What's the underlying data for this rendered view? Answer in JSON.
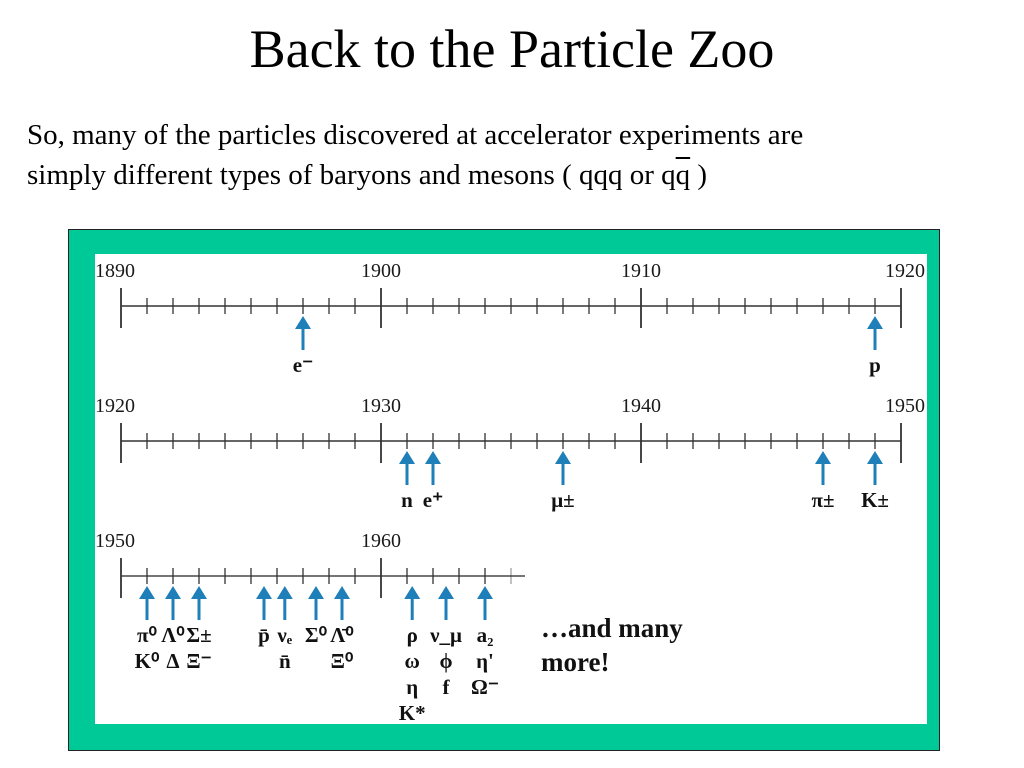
{
  "slide": {
    "title": "Back to the Particle Zoo",
    "line1": "So, many of the particles discovered at accelerator experiments are",
    "line2_pre": "simply different types of baryons and mesons ( qqq or q",
    "line2_bar": "q",
    "line2_post": ")"
  },
  "colors": {
    "frame": "#00c998",
    "arrow": "#1f7fb8",
    "axis": "#333333"
  },
  "timelines": [
    {
      "start": 1890,
      "end": 1920,
      "labels": [
        "1890",
        "1900",
        "1910",
        "1920"
      ]
    },
    {
      "start": 1920,
      "end": 1950,
      "labels": [
        "1920",
        "1930",
        "1940",
        "1950"
      ]
    },
    {
      "start": 1950,
      "end": 1980,
      "labels": [
        "1950",
        "1960"
      ]
    }
  ],
  "discoveries": [
    {
      "row": 0,
      "year": 1897,
      "lines": [
        "e⁻"
      ]
    },
    {
      "row": 0,
      "year": 1919,
      "lines": [
        "p"
      ]
    },
    {
      "row": 1,
      "year": 1931,
      "lines": [
        "n"
      ]
    },
    {
      "row": 1,
      "year": 1932,
      "lines": [
        "e⁺"
      ]
    },
    {
      "row": 1,
      "year": 1937,
      "lines": [
        "μ±"
      ]
    },
    {
      "row": 1,
      "year": 1947,
      "lines": [
        "π±"
      ]
    },
    {
      "row": 1,
      "year": 1949,
      "lines": [
        "K±"
      ]
    },
    {
      "row": 2,
      "year": 1951,
      "lines": [
        "π⁰",
        "K⁰"
      ]
    },
    {
      "row": 2,
      "year": 1952,
      "lines": [
        "Λ⁰",
        "Δ"
      ]
    },
    {
      "row": 2,
      "year": 1953,
      "lines": [
        "Σ±",
        "Ξ⁻"
      ]
    },
    {
      "row": 2,
      "year": 1955.5,
      "lines": [
        "p̄"
      ]
    },
    {
      "row": 2,
      "year": 1956.3,
      "lines": [
        "νₑ",
        "n̄"
      ]
    },
    {
      "row": 2,
      "year": 1957.5,
      "lines": [
        "Σ⁰"
      ]
    },
    {
      "row": 2,
      "year": 1958.5,
      "lines": [
        "Λ̄⁰",
        "Ξ⁰"
      ]
    },
    {
      "row": 2,
      "year": 1961.2,
      "lines": [
        "ρ",
        "ω",
        "η",
        "K*"
      ]
    },
    {
      "row": 2,
      "year": 1962.5,
      "lines": [
        "ν_μ",
        "ϕ",
        "f"
      ]
    },
    {
      "row": 2,
      "year": 1964,
      "lines": [
        "a₂",
        "η'",
        "Ω⁻"
      ]
    }
  ],
  "more_text": [
    "…and many",
    "more!"
  ]
}
